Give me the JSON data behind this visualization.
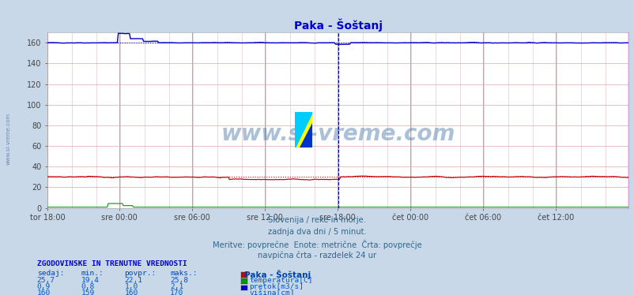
{
  "title": "Paka - Šoštanj",
  "title_color": "#0000cc",
  "bg_color": "#c8d8e8",
  "plot_bg_color": "#ffffff",
  "grid_color_h": "#ddaaaa",
  "grid_color_v_minor": "#ddbbbb",
  "grid_color_v_major": "#cc8888",
  "xlabel_ticks": [
    "tor 18:00",
    "sre 00:00",
    "sre 06:00",
    "sre 12:00",
    "sre 18:00",
    "čet 00:00",
    "čet 06:00",
    "čet 12:00"
  ],
  "tick_positions_norm": [
    0.0,
    0.125,
    0.25,
    0.375,
    0.5,
    0.625,
    0.75,
    0.875
  ],
  "total_points": 576,
  "ylim": [
    0,
    170
  ],
  "yticks": [
    0,
    20,
    40,
    60,
    80,
    100,
    120,
    140,
    160
  ],
  "temp_color": "#cc0000",
  "flow_color": "#009900",
  "height_color": "#0000cc",
  "vline_mid_color": "#000088",
  "vline_mid_style": "--",
  "vline_end_color": "#ff00ff",
  "watermark_text": "www.si-vreme.com",
  "watermark_color": "#4477aa",
  "watermark_alpha": 0.45,
  "footer_line1": "Slovenija / reke in morje.",
  "footer_line2": "zadnja dva dni / 5 minut.",
  "footer_line3": "Meritve: povprečne  Enote: metrične  Črta: povprečje",
  "footer_line4": "navpična črta - razdelek 24 ur",
  "footer_color": "#336688",
  "table_header": "ZGODOVINSKE IN TRENUTNE VREDNOSTI",
  "table_header_color": "#0000cc",
  "col_headers": [
    "sedaj:",
    "min.:",
    "povpr.:",
    "maks.:"
  ],
  "col_header_color": "#0044aa",
  "row1_vals": [
    "25,7",
    "19,4",
    "22,1",
    "25,8"
  ],
  "row2_vals": [
    "0,9",
    "0,8",
    "1,0",
    "2,1"
  ],
  "row3_vals": [
    "160",
    "159",
    "160",
    "170"
  ],
  "row_color": "#0055cc",
  "legend_labels": [
    "temperatura[C]",
    "pretok[m3/s]",
    "višina[cm]"
  ],
  "legend_colors": [
    "#cc0000",
    "#009900",
    "#0000cc"
  ],
  "station_label": "Paka - Šoštanj",
  "station_label_color": "#0044aa",
  "left_watermark": "www.si-vreme.com",
  "left_watermark_color": "#5577aa",
  "logo_colors": [
    "#ffff00",
    "#00ccff",
    "#0033cc"
  ]
}
